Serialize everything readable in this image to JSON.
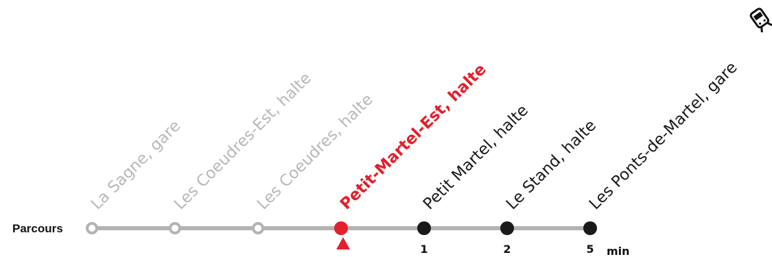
{
  "route": {
    "label": "Parcours",
    "unit": "min",
    "stops": [
      {
        "name": "La Sagne, gare",
        "state": "passed",
        "minutes": ""
      },
      {
        "name": "Les Coeudres-Est, halte",
        "state": "passed",
        "minutes": ""
      },
      {
        "name": "Les Coeudres, halte",
        "state": "passed",
        "minutes": ""
      },
      {
        "name": "Petit-Martel-Est, halte",
        "state": "current",
        "minutes": ""
      },
      {
        "name": "Petit Martel, halte",
        "state": "upcoming",
        "minutes": "1"
      },
      {
        "name": "Le Stand, halte",
        "state": "upcoming",
        "minutes": "2"
      },
      {
        "name": "Les Ponts-de-Martel, gare",
        "state": "upcoming",
        "minutes": "5"
      }
    ]
  },
  "colors": {
    "line": "#b3b3b3",
    "passed": "#b3b3b3",
    "current": "#e3202b",
    "upcoming": "#1a1a1a"
  },
  "icons": {
    "current_position": "triangle-up-icon",
    "terminus": "train-icon"
  }
}
